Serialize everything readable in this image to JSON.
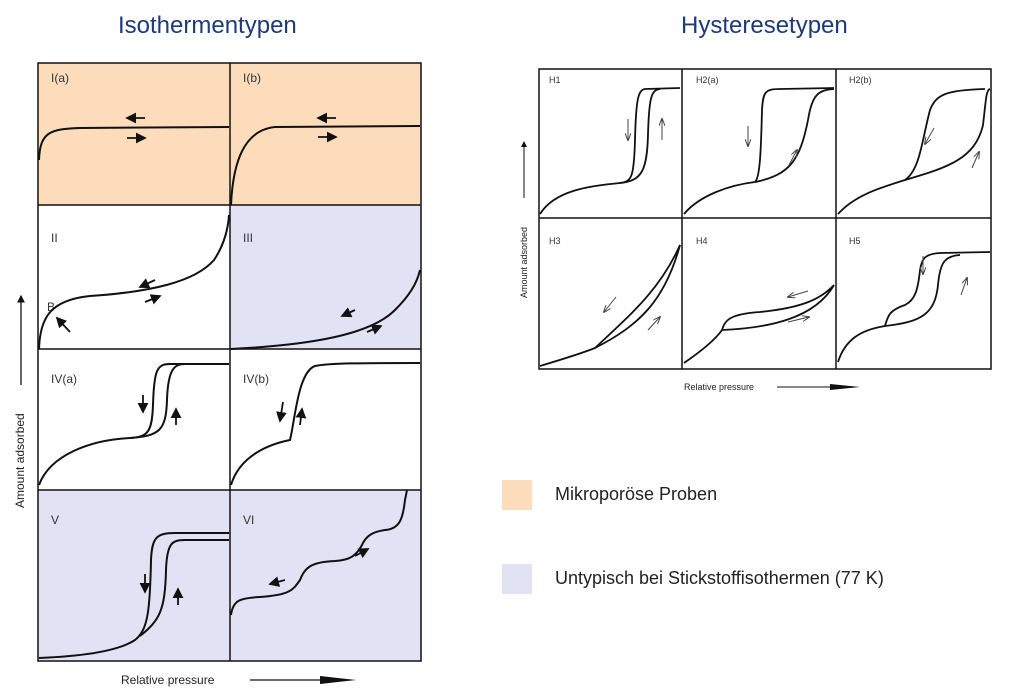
{
  "headings": {
    "isotherms": "Isothermentypen",
    "hysteresis": "Hysteresetypen"
  },
  "isotherm_panels": [
    {
      "id": "I(a)",
      "category": "microporous"
    },
    {
      "id": "I(b)",
      "category": "microporous"
    },
    {
      "id": "II",
      "category": "none",
      "marker": "B"
    },
    {
      "id": "III",
      "category": "atypical"
    },
    {
      "id": "IV(a)",
      "category": "none"
    },
    {
      "id": "IV(b)",
      "category": "none"
    },
    {
      "id": "V",
      "category": "atypical"
    },
    {
      "id": "VI",
      "category": "atypical"
    }
  ],
  "isotherm_axes": {
    "y": "Amount adsorbed",
    "x": "Relative pressure"
  },
  "hysteresis_panels": [
    {
      "id": "H1"
    },
    {
      "id": "H2(a)"
    },
    {
      "id": "H2(b)"
    },
    {
      "id": "H3"
    },
    {
      "id": "H4"
    },
    {
      "id": "H5"
    }
  ],
  "hysteresis_axes": {
    "y": "Amount adsorbed",
    "x": "Relative pressure"
  },
  "legend": [
    {
      "label": "Mikroporöse Proben",
      "color": "#fddcbb"
    },
    {
      "label": "Untypisch bei Stickstoffisothermen (77 K)",
      "color": "#e2e2f5"
    }
  ],
  "colors": {
    "heading": "#1f3a7a",
    "microporous": "#fddcbb",
    "atypical": "#e2e2f5",
    "line": "#111111"
  }
}
